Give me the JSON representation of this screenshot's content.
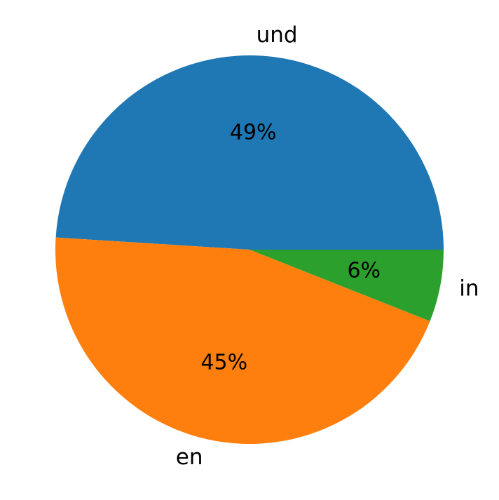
{
  "chart_data": {
    "type": "pie",
    "categories": [
      "und",
      "en",
      "in"
    ],
    "values": [
      49,
      45,
      6
    ],
    "value_labels": [
      "49%",
      "45%",
      "6%"
    ],
    "colors": [
      "#1f77b4",
      "#ff7f0e",
      "#2ca02c"
    ]
  }
}
